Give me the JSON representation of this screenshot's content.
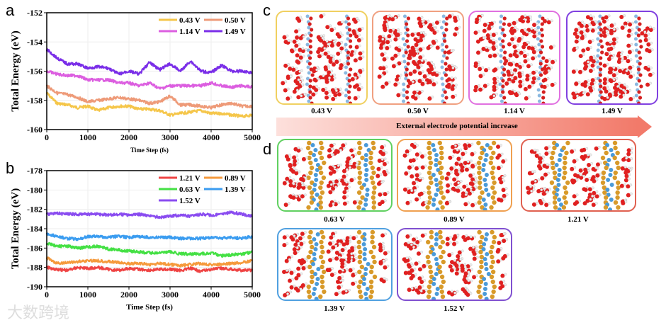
{
  "panels": {
    "a": "a",
    "b": "b",
    "c": "c",
    "d": "d"
  },
  "watermark": "大数跨境",
  "chart_data": [
    {
      "type": "line",
      "panel": "a",
      "xlabel": "Time Step (fs)",
      "ylabel": "Total Energy (eV)",
      "xlim": [
        0,
        5000
      ],
      "ylim": [
        -160,
        -152
      ],
      "xticks": [
        0,
        1000,
        2000,
        3000,
        4000,
        5000
      ],
      "yticks": [
        -160,
        -158,
        -156,
        -154,
        -152
      ],
      "legend": "top-right",
      "grid": true,
      "x": [
        0,
        250,
        500,
        750,
        1000,
        1250,
        1500,
        1750,
        2000,
        2250,
        2500,
        2750,
        3000,
        3250,
        3500,
        3750,
        4000,
        4250,
        4500,
        4750,
        5000
      ],
      "series": [
        {
          "name": "0.43 V",
          "color": "#f5c64a",
          "values": [
            -157.5,
            -158.2,
            -158.3,
            -158.5,
            -158.4,
            -158.7,
            -158.5,
            -158.4,
            -158.4,
            -158.6,
            -158.6,
            -158.7,
            -159.0,
            -158.9,
            -158.8,
            -158.7,
            -158.9,
            -158.9,
            -159.0,
            -159.1,
            -159.0
          ]
        },
        {
          "name": "0.50 V",
          "color": "#ee9a78",
          "values": [
            -157.0,
            -157.5,
            -157.6,
            -157.8,
            -158.1,
            -158.0,
            -157.9,
            -157.8,
            -157.9,
            -158.0,
            -158.2,
            -158.1,
            -157.7,
            -158.3,
            -158.3,
            -158.4,
            -158.5,
            -158.3,
            -158.2,
            -158.4,
            -158.4
          ]
        },
        {
          "name": "1.14 V",
          "color": "#dc5ee0",
          "values": [
            -156.0,
            -156.2,
            -156.3,
            -156.3,
            -156.6,
            -156.6,
            -156.6,
            -156.8,
            -156.8,
            -157.0,
            -156.8,
            -157.2,
            -157.0,
            -157.0,
            -157.0,
            -157.0,
            -156.8,
            -157.0,
            -157.1,
            -157.0,
            -157.1
          ]
        },
        {
          "name": "1.49 V",
          "color": "#7a2ee8",
          "values": [
            -154.5,
            -155.1,
            -155.5,
            -155.5,
            -155.8,
            -155.7,
            -155.8,
            -156.2,
            -156.0,
            -156.2,
            -155.4,
            -155.9,
            -155.5,
            -156.0,
            -155.3,
            -156.0,
            -156.1,
            -155.6,
            -156.0,
            -156.0,
            -156.1
          ]
        }
      ]
    },
    {
      "type": "line",
      "panel": "b",
      "xlabel": "Time Step (fs)",
      "ylabel": "Total Energy (eV)",
      "xlim": [
        0,
        5000
      ],
      "ylim": [
        -190,
        -178
      ],
      "xticks": [
        0,
        1000,
        2000,
        3000,
        4000,
        5000
      ],
      "yticks": [
        -190,
        -188,
        -186,
        -184,
        -182,
        -180,
        -178
      ],
      "legend": "top-right",
      "grid": true,
      "x": [
        0,
        250,
        500,
        750,
        1000,
        1250,
        1500,
        1750,
        2000,
        2250,
        2500,
        2750,
        3000,
        3250,
        3500,
        3750,
        4000,
        4250,
        4500,
        4750,
        5000
      ],
      "series": [
        {
          "name": "1.21 V",
          "color": "#ef4444",
          "values": [
            -188.0,
            -188.2,
            -188.3,
            -188.0,
            -188.1,
            -188.0,
            -188.2,
            -188.3,
            -188.1,
            -188.2,
            -188.3,
            -188.2,
            -188.2,
            -188.3,
            -188.1,
            -188.4,
            -188.2,
            -188.1,
            -188.2,
            -188.3,
            -188.3
          ]
        },
        {
          "name": "0.89 V",
          "color": "#f59a3c",
          "values": [
            -187.0,
            -187.6,
            -187.5,
            -187.4,
            -187.3,
            -187.3,
            -187.4,
            -187.5,
            -187.6,
            -187.6,
            -187.7,
            -187.6,
            -187.7,
            -187.8,
            -187.7,
            -187.6,
            -187.7,
            -187.7,
            -187.6,
            -187.5,
            -187.3
          ]
        },
        {
          "name": "0.63 V",
          "color": "#44e044",
          "values": [
            -185.5,
            -185.8,
            -185.8,
            -186.0,
            -185.9,
            -185.8,
            -186.1,
            -186.2,
            -186.3,
            -186.4,
            -186.5,
            -186.5,
            -186.4,
            -186.6,
            -186.6,
            -186.6,
            -186.5,
            -186.8,
            -186.7,
            -186.6,
            -186.4
          ]
        },
        {
          "name": "1.39 V",
          "color": "#3a9cf0",
          "values": [
            -184.5,
            -184.8,
            -185.0,
            -185.1,
            -184.8,
            -184.8,
            -184.9,
            -184.8,
            -184.9,
            -184.8,
            -184.9,
            -184.9,
            -184.9,
            -185.0,
            -185.0,
            -185.0,
            -184.9,
            -185.0,
            -184.9,
            -185.0,
            -184.8
          ]
        },
        {
          "name": "1.52 V",
          "color": "#8a4cf0",
          "values": [
            -182.5,
            -182.4,
            -182.5,
            -182.5,
            -182.5,
            -182.5,
            -182.6,
            -182.5,
            -182.6,
            -182.5,
            -182.7,
            -182.8,
            -182.7,
            -182.6,
            -182.7,
            -182.5,
            -182.6,
            -182.5,
            -182.3,
            -182.5,
            -182.7
          ]
        }
      ]
    }
  ],
  "panel_c": {
    "items": [
      {
        "label": "0.43 V",
        "color": "#f0d060"
      },
      {
        "label": "0.50 V",
        "color": "#f0a080"
      },
      {
        "label": "1.14 V",
        "color": "#e070e0"
      },
      {
        "label": "1.49 V",
        "color": "#8040e0"
      }
    ],
    "arrow_text": "External electrode potential increase"
  },
  "panel_d": {
    "items": [
      {
        "label": "0.63 V",
        "color": "#60d060"
      },
      {
        "label": "0.89 V",
        "color": "#f0a050"
      },
      {
        "label": "1.21 V",
        "color": "#e06050"
      },
      {
        "label": "1.39 V",
        "color": "#50a0e0"
      },
      {
        "label": "1.52 V",
        "color": "#8050d0"
      }
    ]
  }
}
